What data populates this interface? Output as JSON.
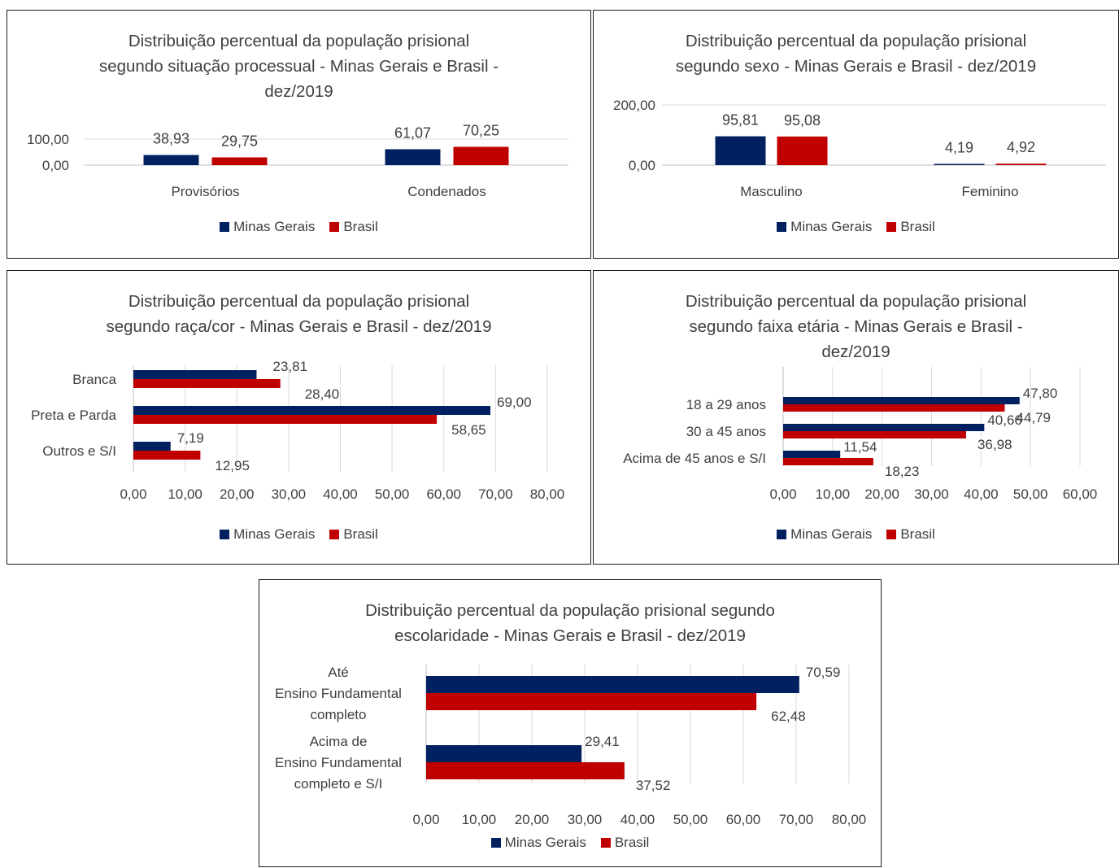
{
  "legend": {
    "s1": "Minas Gerais",
    "s2": "Brasil"
  },
  "colors": {
    "s1": "#002060",
    "s2": "#C00000",
    "grid": "#d9d9d9",
    "axis": "#bfbfbf"
  },
  "panels": {
    "p1": {
      "title": [
        "Distribuição percentual da população prisional",
        "segundo situação processual - Minas Gerais e Brasil -",
        "dez/2019"
      ]
    },
    "p2": {
      "title": [
        "Distribuição percentual da população prisional",
        "segundo sexo - Minas Gerais e Brasil - dez/2019"
      ]
    },
    "p3": {
      "title": [
        "Distribuição percentual da população prisional",
        "segundo raça/cor - Minas Gerais e Brasil - dez/2019"
      ]
    },
    "p4": {
      "title": [
        "Distribuição percentual da população prisional",
        "segundo faixa etária - Minas Gerais e Brasil -",
        "dez/2019"
      ]
    },
    "p5": {
      "title": [
        "Distribuição percentual da população prisional segundo",
        "escolaridade - Minas Gerais e Brasil - dez/2019"
      ]
    }
  },
  "chart_data": [
    {
      "id": "p1",
      "type": "bar",
      "orientation": "vertical",
      "title": "Distribuição percentual da população prisional segundo situação processual - Minas Gerais e Brasil - dez/2019",
      "categories": [
        "Provisórios",
        "Condenados"
      ],
      "series": [
        {
          "name": "Minas Gerais",
          "values": [
            38.93,
            61.07
          ],
          "labels": [
            "38,93",
            "61,07"
          ]
        },
        {
          "name": "Brasil",
          "values": [
            29.75,
            70.25
          ],
          "labels": [
            "29,75",
            "70,25"
          ]
        }
      ],
      "ylim": [
        0,
        100
      ],
      "yticks": [
        "0,00",
        "100,00"
      ],
      "grid": true,
      "legend": "bottom"
    },
    {
      "id": "p2",
      "type": "bar",
      "orientation": "vertical",
      "title": "Distribuição percentual da população prisional segundo sexo - Minas Gerais e Brasil - dez/2019",
      "categories": [
        "Masculino",
        "Feminino"
      ],
      "series": [
        {
          "name": "Minas Gerais",
          "values": [
            95.81,
            4.19
          ],
          "labels": [
            "95,81",
            "4,19"
          ]
        },
        {
          "name": "Brasil",
          "values": [
            95.08,
            4.92
          ],
          "labels": [
            "95,08",
            "4,92"
          ]
        }
      ],
      "ylim": [
        0,
        200
      ],
      "yticks": [
        "0,00",
        "200,00"
      ],
      "grid": true,
      "legend": "bottom"
    },
    {
      "id": "p3",
      "type": "bar",
      "orientation": "horizontal",
      "title": "Distribuição percentual da população prisional segundo raça/cor - Minas Gerais e Brasil - dez/2019",
      "categories": [
        "Branca",
        "Preta e Parda",
        "Outros e S/I"
      ],
      "series": [
        {
          "name": "Minas Gerais",
          "values": [
            23.81,
            69.0,
            7.19
          ],
          "labels": [
            "23,81",
            "69,00",
            "7,19"
          ]
        },
        {
          "name": "Brasil",
          "values": [
            28.4,
            58.65,
            12.95
          ],
          "labels": [
            "28,40",
            "58,65",
            "12,95"
          ]
        }
      ],
      "xlim": [
        0,
        80
      ],
      "xticks": [
        "0,00",
        "10,00",
        "20,00",
        "30,00",
        "40,00",
        "50,00",
        "60,00",
        "70,00",
        "80,00"
      ],
      "grid": true,
      "legend": "bottom"
    },
    {
      "id": "p4",
      "type": "bar",
      "orientation": "horizontal",
      "title": "Distribuição percentual da população prisional segundo faixa etária - Minas Gerais e Brasil - dez/2019",
      "categories": [
        "18 a 29 anos",
        "30 a 45 anos",
        "Acima de 45 anos e S/I"
      ],
      "series": [
        {
          "name": "Minas Gerais",
          "values": [
            47.8,
            40.66,
            11.54
          ],
          "labels": [
            "47,80",
            "40,66",
            "11,54"
          ]
        },
        {
          "name": "Brasil",
          "values": [
            44.79,
            36.98,
            18.23
          ],
          "labels": [
            "44,79",
            "36,98",
            "18,23"
          ]
        }
      ],
      "xlim": [
        0,
        60
      ],
      "xticks": [
        "0,00",
        "10,00",
        "20,00",
        "30,00",
        "40,00",
        "50,00",
        "60,00"
      ],
      "grid": true,
      "legend": "bottom"
    },
    {
      "id": "p5",
      "type": "bar",
      "orientation": "horizontal",
      "title": "Distribuição percentual da população prisional segundo escolaridade - Minas Gerais e Brasil - dez/2019",
      "categories": [
        [
          "Até",
          "Ensino Fundamental",
          "completo"
        ],
        [
          "Acima de",
          "Ensino Fundamental",
          "completo e S/I"
        ]
      ],
      "series": [
        {
          "name": "Minas Gerais",
          "values": [
            70.59,
            29.41
          ],
          "labels": [
            "70,59",
            "29,41"
          ]
        },
        {
          "name": "Brasil",
          "values": [
            62.48,
            37.52
          ],
          "labels": [
            "62,48",
            "37,52"
          ]
        }
      ],
      "xlim": [
        0,
        80
      ],
      "xticks": [
        "0,00",
        "10,00",
        "20,00",
        "30,00",
        "40,00",
        "50,00",
        "60,00",
        "70,00",
        "80,00"
      ],
      "grid": true,
      "legend": "bottom"
    }
  ]
}
